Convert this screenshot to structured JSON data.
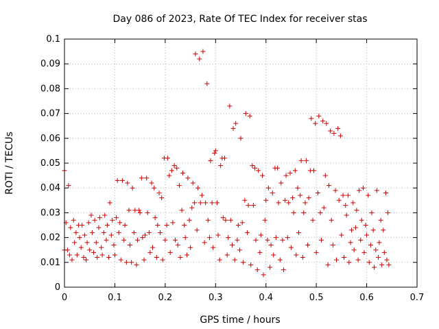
{
  "chart_data": {
    "type": "scatter",
    "title": "Day 086 of 2023, Rate Of TEC Index for receiver stas",
    "xlabel": "GPS time / hours",
    "ylabel": "ROTI / TECUs",
    "xlim": [
      0,
      0.7
    ],
    "ylim": [
      0,
      0.1
    ],
    "xticks": [
      "0",
      "0.1",
      "0.2",
      "0.3",
      "0.4",
      "0.5",
      "0.6",
      "0.7"
    ],
    "yticks": [
      "0",
      "0.01",
      "0.02",
      "0.03",
      "0.04",
      "0.05",
      "0.06",
      "0.07",
      "0.08",
      "0.09",
      "0.1"
    ],
    "grid": true,
    "legend": "none",
    "marker": "plus",
    "color": "#cc0000",
    "points": [
      [
        0.0,
        0.047
      ],
      [
        0.0,
        0.015
      ],
      [
        0.003,
        0.026
      ],
      [
        0.006,
        0.015
      ],
      [
        0.008,
        0.041
      ],
      [
        0.01,
        0.013
      ],
      [
        0.012,
        0.024
      ],
      [
        0.015,
        0.011
      ],
      [
        0.018,
        0.027
      ],
      [
        0.02,
        0.018
      ],
      [
        0.023,
        0.022
      ],
      [
        0.025,
        0.013
      ],
      [
        0.028,
        0.025
      ],
      [
        0.03,
        0.02
      ],
      [
        0.033,
        0.016
      ],
      [
        0.035,
        0.025
      ],
      [
        0.038,
        0.012
      ],
      [
        0.04,
        0.021
      ],
      [
        0.043,
        0.011
      ],
      [
        0.045,
        0.018
      ],
      [
        0.048,
        0.026
      ],
      [
        0.05,
        0.015
      ],
      [
        0.053,
        0.029
      ],
      [
        0.055,
        0.022
      ],
      [
        0.058,
        0.014
      ],
      [
        0.06,
        0.027
      ],
      [
        0.063,
        0.018
      ],
      [
        0.065,
        0.012
      ],
      [
        0.068,
        0.024
      ],
      [
        0.07,
        0.028
      ],
      [
        0.073,
        0.016
      ],
      [
        0.075,
        0.013
      ],
      [
        0.078,
        0.022
      ],
      [
        0.08,
        0.029
      ],
      [
        0.083,
        0.019
      ],
      [
        0.085,
        0.025
      ],
      [
        0.088,
        0.012
      ],
      [
        0.09,
        0.034
      ],
      [
        0.093,
        0.021
      ],
      [
        0.095,
        0.027
      ],
      [
        0.098,
        0.017
      ],
      [
        0.1,
        0.013
      ],
      [
        0.103,
        0.028
      ],
      [
        0.105,
        0.043
      ],
      [
        0.108,
        0.022
      ],
      [
        0.11,
        0.026
      ],
      [
        0.112,
        0.011
      ],
      [
        0.115,
        0.043
      ],
      [
        0.118,
        0.019
      ],
      [
        0.12,
        0.025
      ],
      [
        0.123,
        0.01
      ],
      [
        0.125,
        0.042
      ],
      [
        0.128,
        0.031
      ],
      [
        0.13,
        0.017
      ],
      [
        0.133,
        0.01
      ],
      [
        0.135,
        0.04
      ],
      [
        0.138,
        0.022
      ],
      [
        0.14,
        0.031
      ],
      [
        0.143,
        0.009
      ],
      [
        0.145,
        0.019
      ],
      [
        0.148,
        0.031
      ],
      [
        0.15,
        0.03
      ],
      [
        0.153,
        0.044
      ],
      [
        0.155,
        0.02
      ],
      [
        0.158,
        0.011
      ],
      [
        0.16,
        0.021
      ],
      [
        0.163,
        0.044
      ],
      [
        0.165,
        0.03
      ],
      [
        0.168,
        0.022
      ],
      [
        0.17,
        0.014
      ],
      [
        0.173,
        0.042
      ],
      [
        0.175,
        0.016
      ],
      [
        0.178,
        0.04
      ],
      [
        0.18,
        0.028
      ],
      [
        0.183,
        0.012
      ],
      [
        0.185,
        0.025
      ],
      [
        0.188,
        0.038
      ],
      [
        0.19,
        0.022
      ],
      [
        0.193,
        0.036
      ],
      [
        0.195,
        0.011
      ],
      [
        0.198,
        0.052
      ],
      [
        0.2,
        0.019
      ],
      [
        0.203,
        0.025
      ],
      [
        0.205,
        0.052
      ],
      [
        0.208,
        0.045
      ],
      [
        0.21,
        0.014
      ],
      [
        0.213,
        0.047
      ],
      [
        0.215,
        0.026
      ],
      [
        0.218,
        0.049
      ],
      [
        0.22,
        0.019
      ],
      [
        0.223,
        0.048
      ],
      [
        0.225,
        0.017
      ],
      [
        0.228,
        0.041
      ],
      [
        0.23,
        0.012
      ],
      [
        0.233,
        0.031
      ],
      [
        0.235,
        0.046
      ],
      [
        0.238,
        0.025
      ],
      [
        0.24,
        0.02
      ],
      [
        0.243,
        0.013
      ],
      [
        0.245,
        0.044
      ],
      [
        0.248,
        0.027
      ],
      [
        0.25,
        0.016
      ],
      [
        0.253,
        0.032
      ],
      [
        0.255,
        0.042
      ],
      [
        0.258,
        0.034
      ],
      [
        0.26,
        0.094
      ],
      [
        0.263,
        0.023
      ],
      [
        0.265,
        0.04
      ],
      [
        0.268,
        0.092
      ],
      [
        0.27,
        0.034
      ],
      [
        0.273,
        0.037
      ],
      [
        0.275,
        0.095
      ],
      [
        0.278,
        0.018
      ],
      [
        0.28,
        0.034
      ],
      [
        0.283,
        0.082
      ],
      [
        0.285,
        0.027
      ],
      [
        0.288,
        0.02
      ],
      [
        0.29,
        0.051
      ],
      [
        0.293,
        0.034
      ],
      [
        0.295,
        0.016
      ],
      [
        0.298,
        0.054
      ],
      [
        0.3,
        0.055
      ],
      [
        0.303,
        0.034
      ],
      [
        0.305,
        0.021
      ],
      [
        0.308,
        0.011
      ],
      [
        0.31,
        0.049
      ],
      [
        0.313,
        0.052
      ],
      [
        0.315,
        0.028
      ],
      [
        0.318,
        0.052
      ],
      [
        0.32,
        0.027
      ],
      [
        0.323,
        0.013
      ],
      [
        0.325,
        0.02
      ],
      [
        0.328,
        0.073
      ],
      [
        0.33,
        0.027
      ],
      [
        0.333,
        0.017
      ],
      [
        0.335,
        0.064
      ],
      [
        0.338,
        0.011
      ],
      [
        0.34,
        0.066
      ],
      [
        0.343,
        0.019
      ],
      [
        0.345,
        0.025
      ],
      [
        0.348,
        0.015
      ],
      [
        0.35,
        0.06
      ],
      [
        0.353,
        0.026
      ],
      [
        0.355,
        0.01
      ],
      [
        0.358,
        0.035
      ],
      [
        0.36,
        0.07
      ],
      [
        0.363,
        0.022
      ],
      [
        0.365,
        0.033
      ],
      [
        0.368,
        0.069
      ],
      [
        0.37,
        0.009
      ],
      [
        0.373,
        0.049
      ],
      [
        0.375,
        0.033
      ],
      [
        0.378,
        0.048
      ],
      [
        0.38,
        0.019
      ],
      [
        0.383,
        0.007
      ],
      [
        0.385,
        0.047
      ],
      [
        0.388,
        0.014
      ],
      [
        0.39,
        0.021
      ],
      [
        0.393,
        0.045
      ],
      [
        0.395,
        0.005
      ],
      [
        0.398,
        0.027
      ],
      [
        0.4,
        0.035
      ],
      [
        0.403,
        0.019
      ],
      [
        0.405,
        0.04
      ],
      [
        0.408,
        0.008
      ],
      [
        0.41,
        0.017
      ],
      [
        0.413,
        0.038
      ],
      [
        0.415,
        0.013
      ],
      [
        0.418,
        0.048
      ],
      [
        0.42,
        0.02
      ],
      [
        0.423,
        0.048
      ],
      [
        0.425,
        0.034
      ],
      [
        0.428,
        0.011
      ],
      [
        0.43,
        0.042
      ],
      [
        0.433,
        0.019
      ],
      [
        0.435,
        0.007
      ],
      [
        0.438,
        0.035
      ],
      [
        0.44,
        0.045
      ],
      [
        0.443,
        0.02
      ],
      [
        0.445,
        0.034
      ],
      [
        0.448,
        0.046
      ],
      [
        0.45,
        0.016
      ],
      [
        0.453,
        0.036
      ],
      [
        0.455,
        0.03
      ],
      [
        0.458,
        0.047
      ],
      [
        0.46,
        0.013
      ],
      [
        0.463,
        0.04
      ],
      [
        0.465,
        0.022
      ],
      [
        0.468,
        0.037
      ],
      [
        0.47,
        0.051
      ],
      [
        0.473,
        0.012
      ],
      [
        0.475,
        0.03
      ],
      [
        0.478,
        0.034
      ],
      [
        0.48,
        0.051
      ],
      [
        0.483,
        0.017
      ],
      [
        0.485,
        0.036
      ],
      [
        0.488,
        0.047
      ],
      [
        0.49,
        0.068
      ],
      [
        0.493,
        0.027
      ],
      [
        0.495,
        0.047
      ],
      [
        0.498,
        0.066
      ],
      [
        0.5,
        0.014
      ],
      [
        0.503,
        0.038
      ],
      [
        0.505,
        0.069
      ],
      [
        0.508,
        0.03
      ],
      [
        0.51,
        0.019
      ],
      [
        0.513,
        0.067
      ],
      [
        0.515,
        0.032
      ],
      [
        0.518,
        0.045
      ],
      [
        0.52,
        0.066
      ],
      [
        0.523,
        0.009
      ],
      [
        0.525,
        0.041
      ],
      [
        0.528,
        0.063
      ],
      [
        0.53,
        0.027
      ],
      [
        0.533,
        0.017
      ],
      [
        0.535,
        0.062
      ],
      [
        0.538,
        0.039
      ],
      [
        0.54,
        0.011
      ],
      [
        0.543,
        0.064
      ],
      [
        0.545,
        0.035
      ],
      [
        0.548,
        0.061
      ],
      [
        0.55,
        0.021
      ],
      [
        0.553,
        0.037
      ],
      [
        0.555,
        0.012
      ],
      [
        0.558,
        0.033
      ],
      [
        0.56,
        0.029
      ],
      [
        0.563,
        0.037
      ],
      [
        0.565,
        0.01
      ],
      [
        0.568,
        0.018
      ],
      [
        0.57,
        0.023
      ],
      [
        0.573,
        0.034
      ],
      [
        0.575,
        0.015
      ],
      [
        0.578,
        0.024
      ],
      [
        0.58,
        0.031
      ],
      [
        0.583,
        0.011
      ],
      [
        0.585,
        0.039
      ],
      [
        0.588,
        0.019
      ],
      [
        0.59,
        0.027
      ],
      [
        0.593,
        0.04
      ],
      [
        0.595,
        0.014
      ],
      [
        0.598,
        0.025
      ],
      [
        0.6,
        0.021
      ],
      [
        0.603,
        0.037
      ],
      [
        0.605,
        0.01
      ],
      [
        0.608,
        0.017
      ],
      [
        0.61,
        0.03
      ],
      [
        0.613,
        0.023
      ],
      [
        0.615,
        0.008
      ],
      [
        0.618,
        0.015
      ],
      [
        0.62,
        0.039
      ],
      [
        0.623,
        0.012
      ],
      [
        0.625,
        0.018
      ],
      [
        0.628,
        0.027
      ],
      [
        0.63,
        0.009
      ],
      [
        0.633,
        0.023
      ],
      [
        0.635,
        0.014
      ],
      [
        0.638,
        0.038
      ],
      [
        0.64,
        0.011
      ],
      [
        0.642,
        0.03
      ],
      [
        0.644,
        0.009
      ]
    ]
  }
}
